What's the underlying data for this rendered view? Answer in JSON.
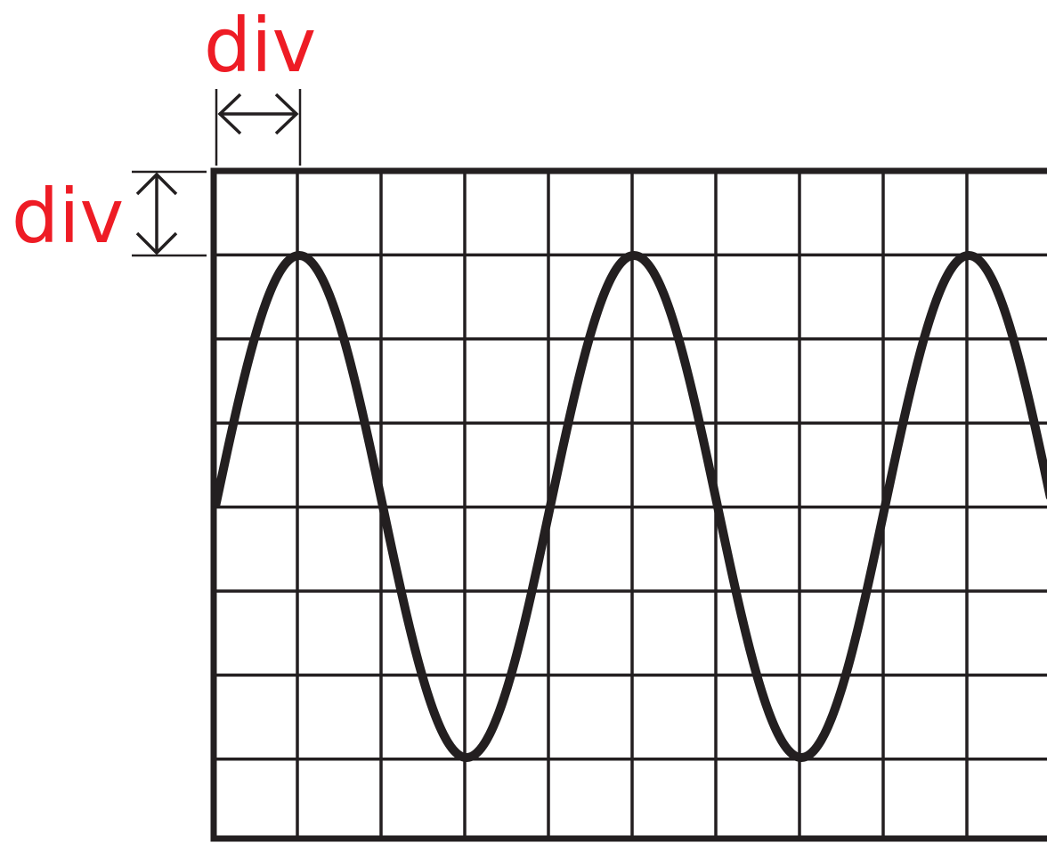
{
  "labels": {
    "horizontal_division": "div",
    "vertical_division": "div"
  }
}
